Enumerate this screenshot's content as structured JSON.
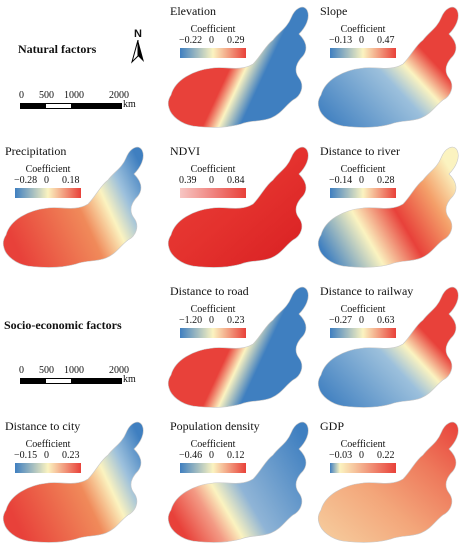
{
  "sections": {
    "natural": "Natural factors",
    "socio": "Socio-economic factors"
  },
  "north_label": "N",
  "scalebar": {
    "ticks": [
      "0",
      "500",
      "1000",
      "2000"
    ],
    "unit": "km"
  },
  "legend_title": "Coefficient",
  "colors": {
    "high": "#e8413a",
    "low": "#3f7fc0",
    "mid": "#fbf3c0",
    "pale_red": "#f7c6c3"
  },
  "panels": [
    {
      "id": "elevation",
      "title": "Elevation",
      "min": "−0.22",
      "zero": "0",
      "max": "0.29",
      "pattern": "A"
    },
    {
      "id": "slope",
      "title": "Slope",
      "min": "−0.13",
      "zero": "0",
      "max": "0.47",
      "pattern": "B"
    },
    {
      "id": "precipitation",
      "title": "Precipitation",
      "min": "−0.28",
      "zero": "0",
      "max": "0.18",
      "pattern": "C"
    },
    {
      "id": "ndvi",
      "title": "NDVI",
      "min": "0.39",
      "zero": "0",
      "max": "0.84",
      "pattern": "D"
    },
    {
      "id": "dist-river",
      "title": "Distance to river",
      "min": "−0.14",
      "zero": "0",
      "max": "0.28",
      "pattern": "E"
    },
    {
      "id": "dist-road",
      "title": "Distance to road",
      "min": "−1.20",
      "zero": "0",
      "max": "0.23",
      "pattern": "A"
    },
    {
      "id": "dist-railway",
      "title": "Distance to railway",
      "min": "−0.27",
      "zero": "0",
      "max": "0.63",
      "pattern": "B"
    },
    {
      "id": "dist-city",
      "title": "Distance to city",
      "min": "−0.15",
      "zero": "0",
      "max": "0.23",
      "pattern": "C"
    },
    {
      "id": "pop-density",
      "title": "Population density",
      "min": "−0.46",
      "zero": "0",
      "max": "0.12",
      "pattern": "F"
    },
    {
      "id": "gdp",
      "title": "GDP",
      "min": "−0.03",
      "zero": "0",
      "max": "0.22",
      "pattern": "G"
    }
  ]
}
